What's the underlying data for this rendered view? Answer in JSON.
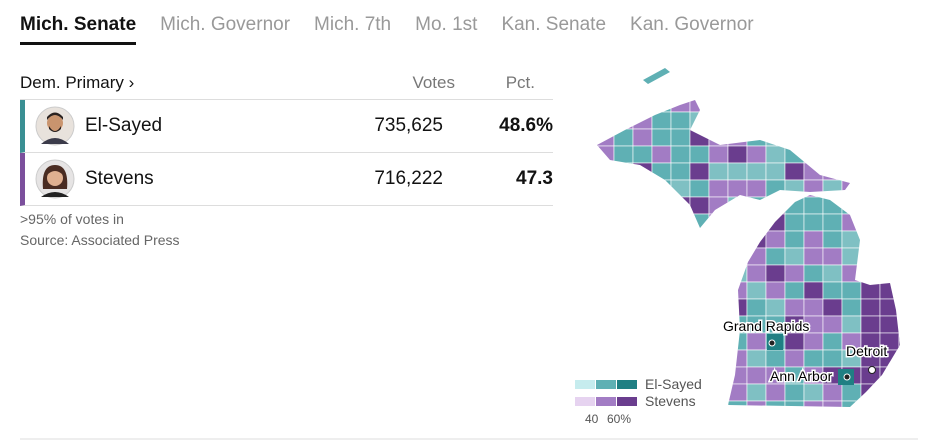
{
  "tabs": {
    "items": [
      "Mich. Senate",
      "Mich. Governor",
      "Mich. 7th",
      "Mo. 1st",
      "Kan. Senate",
      "Kan. Governor"
    ],
    "active": 0
  },
  "table": {
    "header": {
      "race": "Dem. Primary ›",
      "votes": "Votes",
      "pct": "Pct."
    },
    "rows": [
      {
        "name": "El-Sayed",
        "votes": "735,625",
        "pct": "48.6%",
        "color": "#3a8f93"
      },
      {
        "name": "Stevens",
        "votes": "716,222",
        "pct": "47.3",
        "color": "#7b4f9c"
      }
    ]
  },
  "notes": [
    ">95% of votes in",
    "Source: Associated Press"
  ],
  "map": {
    "cities": [
      "Grand Rapids",
      "Detroit",
      "Ann Arbor"
    ],
    "legend": {
      "series": [
        "El-Sayed",
        "Stevens"
      ],
      "scale": [
        "40",
        "60%"
      ]
    }
  }
}
